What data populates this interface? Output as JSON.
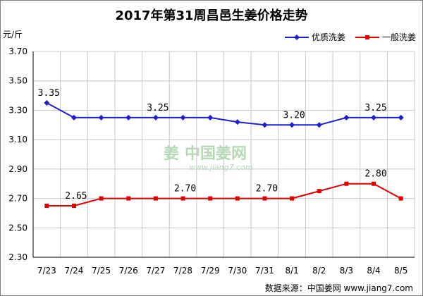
{
  "chart_data": {
    "type": "line",
    "title": "2017年第31周昌邑生姜价格走势",
    "ylabel": "元/斤",
    "categories": [
      "7/23",
      "7/24",
      "7/25",
      "7/26",
      "7/27",
      "7/28",
      "7/29",
      "7/30",
      "7/31",
      "8/1",
      "8/2",
      "8/3",
      "8/4",
      "8/5"
    ],
    "ylim": [
      2.3,
      3.7
    ],
    "yticks": [
      "2.30",
      "2.50",
      "2.70",
      "2.90",
      "3.10",
      "3.30",
      "3.50",
      "3.70"
    ],
    "grid": true,
    "legend_position": "top-right",
    "series": [
      {
        "name": "优质洗姜",
        "color": "#1f1fd0",
        "marker": "diamond",
        "values": [
          3.35,
          3.25,
          3.25,
          3.25,
          3.25,
          3.25,
          3.25,
          3.22,
          3.2,
          3.2,
          3.2,
          3.25,
          3.25,
          3.25
        ],
        "labels": [
          {
            "index": 0,
            "text": "3.35"
          },
          {
            "index": 4,
            "text": "3.25"
          },
          {
            "index": 9,
            "text": "3.20"
          },
          {
            "index": 12,
            "text": "3.25"
          }
        ]
      },
      {
        "name": "一般洗姜",
        "color": "#e00000",
        "marker": "square",
        "values": [
          2.65,
          2.65,
          2.7,
          2.7,
          2.7,
          2.7,
          2.7,
          2.7,
          2.7,
          2.7,
          2.75,
          2.8,
          2.8,
          2.7
        ],
        "labels": [
          {
            "index": 1,
            "text": "2.65"
          },
          {
            "index": 5,
            "text": "2.70"
          },
          {
            "index": 8,
            "text": "2.70"
          },
          {
            "index": 12,
            "text": "2.80"
          }
        ]
      }
    ]
  },
  "watermark": {
    "text": "中国姜网",
    "url": "www.jiang7.com"
  },
  "source": "数据来源：中国姜网  www.jiang7.com"
}
